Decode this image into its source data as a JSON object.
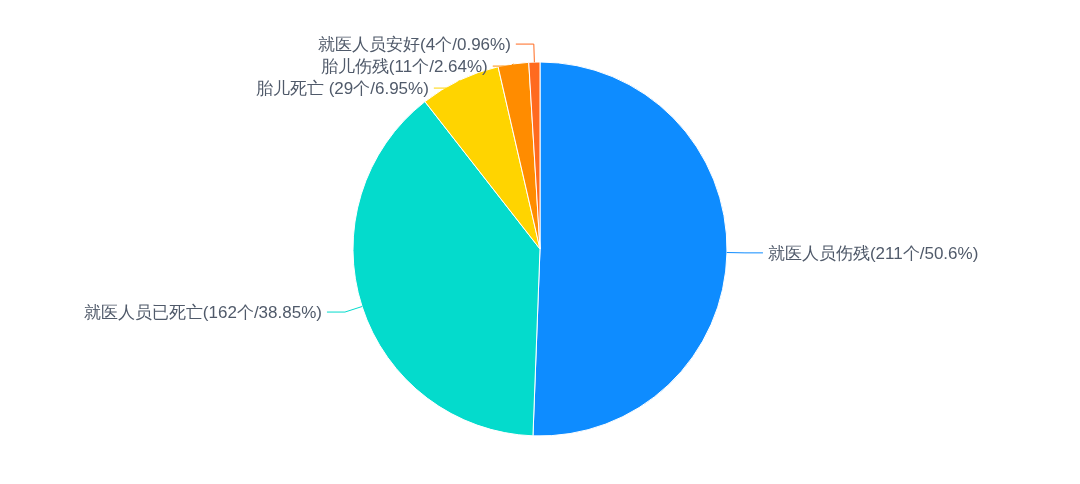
{
  "chart_data": {
    "type": "pie",
    "categories": [
      "就医人员伤残(211个/50.6%)",
      "就医人员已死亡(162个/38.85%)",
      "胎儿死亡 (29个/6.95%)",
      "胎儿伤残(11个/2.64%)",
      "就医人员安好(4个/0.96%)"
    ],
    "values": [
      211,
      162,
      29,
      11,
      4
    ],
    "colors": [
      "#0e8cff",
      "#04dbcc",
      "#ffd400",
      "#ff8c00",
      "#ff6a1f"
    ],
    "legend": false
  }
}
